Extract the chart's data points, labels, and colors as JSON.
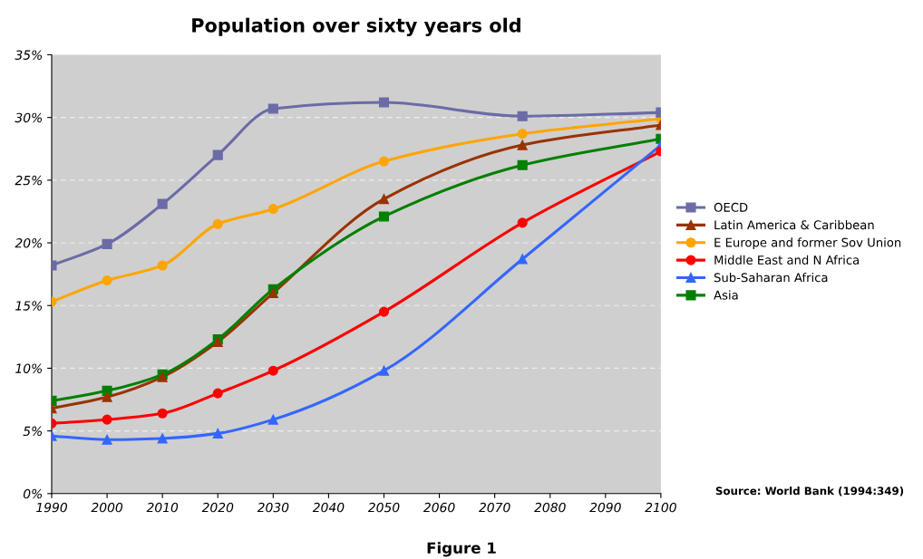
{
  "chart_data": {
    "type": "line",
    "title": "Population over sixty years old",
    "x": [
      1990,
      2000,
      2010,
      2020,
      2030,
      2050,
      2075,
      2100
    ],
    "series": [
      {
        "name": "OECD",
        "color": "#6b6ba8",
        "marker": "square",
        "values": [
          18.2,
          19.9,
          23.1,
          27.0,
          30.7,
          31.2,
          30.1,
          30.4
        ]
      },
      {
        "name": "Latin America & Caribbean",
        "color": "#993300",
        "marker": "triangle",
        "values": [
          6.8,
          7.7,
          9.3,
          12.1,
          16.0,
          23.5,
          27.8,
          29.4
        ]
      },
      {
        "name": "E Europe and former Sov Union",
        "color": "#ffa500",
        "marker": "circle",
        "values": [
          15.3,
          17.0,
          18.2,
          21.5,
          22.7,
          26.5,
          28.7,
          29.9
        ]
      },
      {
        "name": "Middle East and N Africa",
        "color": "#ff0000",
        "marker": "circle",
        "values": [
          5.6,
          5.9,
          6.4,
          8.0,
          9.8,
          14.5,
          21.6,
          27.3
        ]
      },
      {
        "name": "Sub-Saharan Africa",
        "color": "#3366ff",
        "marker": "triangle",
        "values": [
          4.6,
          4.3,
          4.4,
          4.8,
          5.9,
          9.8,
          18.7,
          27.8
        ]
      },
      {
        "name": "Asia",
        "color": "#008000",
        "marker": "square",
        "values": [
          7.4,
          8.2,
          9.5,
          12.3,
          16.3,
          22.1,
          26.2,
          28.3
        ]
      }
    ],
    "xlim": [
      1990,
      2100
    ],
    "xticks": [
      1990,
      2000,
      2010,
      2020,
      2030,
      2040,
      2050,
      2060,
      2070,
      2080,
      2090,
      2100
    ],
    "ylim": [
      0,
      35
    ],
    "yticks": [
      {
        "value": 0,
        "label": "0%"
      },
      {
        "value": 5,
        "label": "5%"
      },
      {
        "value": 10,
        "label": "10%"
      },
      {
        "value": 15,
        "label": "15%"
      },
      {
        "value": 20,
        "label": "20%"
      },
      {
        "value": 25,
        "label": "25%"
      },
      {
        "value": 30,
        "label": "30%"
      },
      {
        "value": 35,
        "label": "35%"
      }
    ],
    "grid": "y",
    "legend": "right",
    "annotations": [
      "Source: World Bank (1994:349)",
      "Figure 1"
    ]
  }
}
